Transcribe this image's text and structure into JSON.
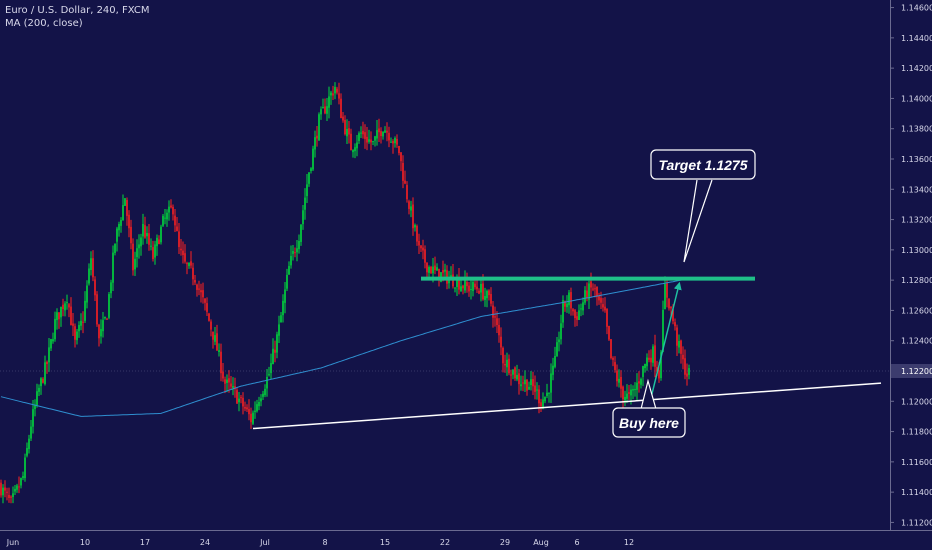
{
  "header": {
    "symbol_line": "Euro / U.S. Dollar, 240, FXCM",
    "indicator_line": "MA (200, close)"
  },
  "colors": {
    "background": "#131348",
    "bull": "#00dc3c",
    "bear": "#ff2020",
    "ma": "#2f8fd0",
    "resistance": "#1fbf88",
    "support": "#ffffff",
    "arrow": "#1fbfa0",
    "callout_bg": "#131348",
    "callout_border": "#ffffff",
    "price_badge": "#3c3c6e"
  },
  "chart_data": {
    "type": "candlestick",
    "symbol": "Euro / U.S. Dollar",
    "timeframe": "240",
    "source": "FXCM",
    "indicator": "MA (200, close)",
    "y_ticks": [
      "1.14600",
      "1.14400",
      "1.14200",
      "1.14000",
      "1.13800",
      "1.13600",
      "1.13400",
      "1.13200",
      "1.13000",
      "1.12800",
      "1.12600",
      "1.12400",
      "1.12200",
      "1.12000",
      "1.11800",
      "1.11600",
      "1.11400",
      "1.11200"
    ],
    "ylim": [
      1.1115,
      1.1465
    ],
    "x_ticks": [
      "Jun",
      "10",
      "17",
      "24",
      "Jul",
      "8",
      "15",
      "22",
      "29",
      "Aug",
      "6",
      "12"
    ],
    "current_price": "1.12200",
    "price_path": [
      [
        0,
        1.1145
      ],
      [
        6,
        1.1132
      ],
      [
        12,
        1.115
      ],
      [
        16,
        1.1185
      ],
      [
        20,
        1.1208
      ],
      [
        24,
        1.1225
      ],
      [
        28,
        1.1252
      ],
      [
        34,
        1.127
      ],
      [
        38,
        1.1238
      ],
      [
        42,
        1.1255
      ],
      [
        46,
        1.1295
      ],
      [
        50,
        1.124
      ],
      [
        54,
        1.1258
      ],
      [
        58,
        1.1305
      ],
      [
        63,
        1.1335
      ],
      [
        67,
        1.1288
      ],
      [
        72,
        1.1315
      ],
      [
        77,
        1.1295
      ],
      [
        82,
        1.1318
      ],
      [
        87,
        1.1328
      ],
      [
        90,
        1.13
      ],
      [
        93,
        1.129
      ],
      [
        98,
        1.1282
      ],
      [
        103,
        1.1262
      ],
      [
        108,
        1.124
      ],
      [
        113,
        1.1212
      ],
      [
        118,
        1.1205
      ],
      [
        123,
        1.1195
      ],
      [
        126,
        1.1188
      ],
      [
        130,
        1.1203
      ],
      [
        135,
        1.1218
      ],
      [
        140,
        1.1248
      ],
      [
        145,
        1.1288
      ],
      [
        150,
        1.131
      ],
      [
        155,
        1.1352
      ],
      [
        160,
        1.1385
      ],
      [
        165,
        1.14
      ],
      [
        168,
        1.1408
      ],
      [
        172,
        1.1385
      ],
      [
        176,
        1.1368
      ],
      [
        181,
        1.1377
      ],
      [
        187,
        1.137
      ],
      [
        192,
        1.1382
      ],
      [
        196,
        1.1375
      ],
      [
        200,
        1.1365
      ],
      [
        203,
        1.1342
      ],
      [
        207,
        1.1318
      ],
      [
        210,
        1.13
      ],
      [
        214,
        1.129
      ],
      [
        218,
        1.1285
      ],
      [
        222,
        1.1283
      ],
      [
        228,
        1.128
      ],
      [
        234,
        1.1275
      ],
      [
        240,
        1.1275
      ],
      [
        246,
        1.1265
      ],
      [
        249,
        1.1248
      ],
      [
        252,
        1.1228
      ],
      [
        256,
        1.1222
      ],
      [
        260,
        1.1214
      ],
      [
        264,
        1.1212
      ],
      [
        268,
        1.1208
      ],
      [
        271,
        1.12
      ],
      [
        274,
        1.1205
      ],
      [
        278,
        1.1225
      ],
      [
        282,
        1.1262
      ],
      [
        285,
        1.1268
      ],
      [
        288,
        1.1255
      ],
      [
        291,
        1.1262
      ],
      [
        294,
        1.1272
      ],
      [
        297,
        1.1275
      ],
      [
        300,
        1.1265
      ],
      [
        303,
        1.1256
      ],
      [
        306,
        1.1228
      ],
      [
        309,
        1.1215
      ],
      [
        312,
        1.1205
      ],
      [
        315,
        1.1202
      ],
      [
        318,
        1.1208
      ],
      [
        321,
        1.1218
      ],
      [
        324,
        1.1228
      ],
      [
        327,
        1.1232
      ],
      [
        330,
        1.1218
      ],
      [
        333,
        1.1275
      ],
      [
        336,
        1.126
      ],
      [
        339,
        1.124
      ],
      [
        342,
        1.1225
      ],
      [
        344,
        1.1218
      ]
    ],
    "ma_path": [
      [
        0,
        1.1203
      ],
      [
        40,
        1.119
      ],
      [
        80,
        1.1192
      ],
      [
        120,
        1.121
      ],
      [
        160,
        1.1222
      ],
      [
        200,
        1.124
      ],
      [
        240,
        1.1256
      ],
      [
        280,
        1.1265
      ],
      [
        320,
        1.1275
      ],
      [
        344,
        1.1281
      ]
    ],
    "resistance_level": 1.1281,
    "support_line": {
      "from": [
        126,
        1.1182
      ],
      "to": [
        440,
        1.1212
      ]
    },
    "annotations": [
      {
        "text": "Target 1.1275",
        "role": "target"
      },
      {
        "text": "Buy here",
        "role": "entry"
      }
    ]
  }
}
